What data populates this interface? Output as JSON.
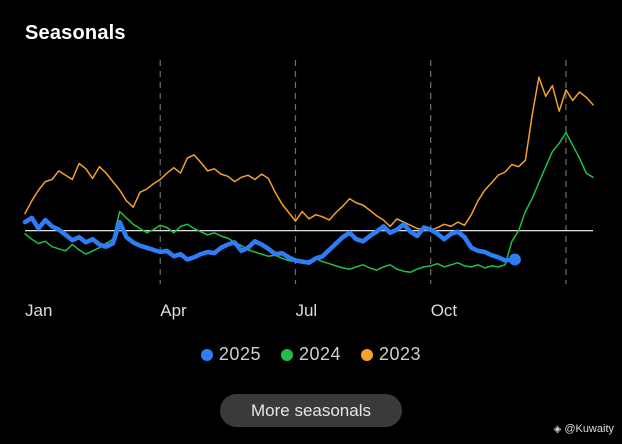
{
  "title": "Seasonals",
  "more_button": "More seasonals",
  "watermark": "@Kuwaity",
  "colors": {
    "2025": "#2f7df6",
    "2024": "#1fbf4a",
    "2023": "#f5a12a",
    "baseline": "#ffffff",
    "vline": "#6e6e6e"
  },
  "chart_data": {
    "type": "line",
    "x_unit": "month",
    "x_ticks": [
      {
        "label": "Jan",
        "x": 1
      },
      {
        "label": "Apr",
        "x": 4
      },
      {
        "label": "Jul",
        "x": 7
      },
      {
        "label": "Oct",
        "x": 10
      }
    ],
    "vlines": [
      4,
      7,
      10,
      13
    ],
    "xlim": [
      1,
      13.6
    ],
    "ylim": [
      -5,
      16
    ],
    "baseline": 0,
    "series": [
      {
        "name": "2025",
        "width": 4.5,
        "x": [
          1.0,
          1.15,
          1.3,
          1.45,
          1.6,
          1.75,
          1.9,
          2.05,
          2.2,
          2.35,
          2.5,
          2.65,
          2.8,
          2.95,
          3.1,
          3.25,
          3.4,
          3.55,
          3.7,
          3.85,
          4.0,
          4.15,
          4.3,
          4.45,
          4.6,
          4.75,
          4.9,
          5.05,
          5.2,
          5.35,
          5.5,
          5.65,
          5.8,
          5.95,
          6.1,
          6.25,
          6.4,
          6.55,
          6.7,
          6.85,
          7.0,
          7.15,
          7.3,
          7.45,
          7.6,
          7.75,
          7.9,
          8.05,
          8.2,
          8.35,
          8.5,
          8.65,
          8.8,
          8.95,
          9.1,
          9.25,
          9.4,
          9.55,
          9.7,
          9.85,
          10.0,
          10.15,
          10.3,
          10.45,
          10.6,
          10.75,
          10.9,
          11.05,
          11.2,
          11.35,
          11.5,
          11.65,
          11.8
        ],
        "y": [
          0.8,
          1.2,
          0.2,
          1.0,
          0.4,
          0.1,
          -0.4,
          -0.9,
          -0.6,
          -1.1,
          -0.8,
          -1.3,
          -1.5,
          -1.2,
          0.8,
          -0.6,
          -1.1,
          -1.4,
          -1.6,
          -1.8,
          -2.0,
          -1.9,
          -2.4,
          -2.2,
          -2.7,
          -2.5,
          -2.2,
          -2.0,
          -2.1,
          -1.6,
          -1.3,
          -1.1,
          -1.9,
          -1.6,
          -1.0,
          -1.3,
          -1.7,
          -2.2,
          -2.1,
          -2.5,
          -2.8,
          -2.9,
          -3.0,
          -2.6,
          -2.4,
          -1.8,
          -1.2,
          -0.6,
          -0.2,
          -0.8,
          -1.0,
          -0.5,
          -0.1,
          0.4,
          -0.2,
          0.1,
          0.6,
          -0.1,
          -0.5,
          0.3,
          0.1,
          -0.3,
          -0.8,
          -0.3,
          -0.1,
          -0.6,
          -1.6,
          -1.9,
          -2.0,
          -2.3,
          -2.5,
          -2.8,
          -2.7
        ]
      },
      {
        "name": "2024",
        "width": 1.5,
        "x": [
          1.0,
          1.15,
          1.3,
          1.45,
          1.6,
          1.75,
          1.9,
          2.05,
          2.2,
          2.35,
          2.5,
          2.65,
          2.8,
          2.95,
          3.1,
          3.25,
          3.4,
          3.55,
          3.7,
          3.85,
          4.0,
          4.15,
          4.3,
          4.45,
          4.6,
          4.75,
          4.9,
          5.05,
          5.2,
          5.35,
          5.5,
          5.65,
          5.8,
          5.95,
          6.1,
          6.25,
          6.4,
          6.55,
          6.7,
          6.85,
          7.0,
          7.15,
          7.3,
          7.45,
          7.6,
          7.75,
          7.9,
          8.05,
          8.2,
          8.35,
          8.5,
          8.65,
          8.8,
          8.95,
          9.1,
          9.25,
          9.4,
          9.55,
          9.7,
          9.85,
          10.0,
          10.15,
          10.3,
          10.45,
          10.6,
          10.75,
          10.9,
          11.05,
          11.2,
          11.35,
          11.5,
          11.65,
          11.8,
          11.95,
          12.1,
          12.25,
          12.4,
          12.55,
          12.7,
          12.85,
          13.0,
          13.15,
          13.3,
          13.45,
          13.6
        ],
        "y": [
          -0.3,
          -0.8,
          -1.2,
          -1.0,
          -1.5,
          -1.7,
          -1.9,
          -1.3,
          -1.8,
          -2.2,
          -1.9,
          -1.6,
          -1.2,
          -0.8,
          1.8,
          1.2,
          0.6,
          0.2,
          -0.2,
          0.1,
          0.5,
          0.3,
          -0.2,
          0.4,
          0.6,
          0.2,
          -0.1,
          -0.4,
          -0.2,
          -0.5,
          -0.7,
          -1.1,
          -1.4,
          -1.8,
          -2.0,
          -2.2,
          -2.4,
          -2.3,
          -2.6,
          -2.8,
          -2.9,
          -3.0,
          -2.8,
          -2.6,
          -2.9,
          -3.1,
          -3.3,
          -3.5,
          -3.6,
          -3.4,
          -3.2,
          -3.5,
          -3.7,
          -3.4,
          -3.2,
          -3.6,
          -3.8,
          -3.9,
          -3.6,
          -3.4,
          -3.3,
          -3.1,
          -3.4,
          -3.2,
          -3.0,
          -3.3,
          -3.4,
          -3.2,
          -3.5,
          -3.3,
          -3.4,
          -3.2,
          -1.0,
          0.0,
          1.8,
          3.0,
          4.5,
          6.0,
          7.4,
          8.2,
          9.2,
          8.0,
          6.8,
          5.4,
          5.0
        ]
      },
      {
        "name": "2023",
        "width": 1.5,
        "x": [
          1.0,
          1.15,
          1.3,
          1.45,
          1.6,
          1.75,
          1.9,
          2.05,
          2.2,
          2.35,
          2.5,
          2.65,
          2.8,
          2.95,
          3.1,
          3.25,
          3.4,
          3.55,
          3.7,
          3.85,
          4.0,
          4.15,
          4.3,
          4.45,
          4.6,
          4.75,
          4.9,
          5.05,
          5.2,
          5.35,
          5.5,
          5.65,
          5.8,
          5.95,
          6.1,
          6.25,
          6.4,
          6.55,
          6.7,
          6.85,
          7.0,
          7.15,
          7.3,
          7.45,
          7.6,
          7.75,
          7.9,
          8.05,
          8.2,
          8.35,
          8.5,
          8.65,
          8.8,
          8.95,
          9.1,
          9.25,
          9.4,
          9.55,
          9.7,
          9.85,
          10.0,
          10.15,
          10.3,
          10.45,
          10.6,
          10.75,
          10.9,
          11.05,
          11.2,
          11.35,
          11.5,
          11.65,
          11.8,
          11.95,
          12.1,
          12.25,
          12.4,
          12.55,
          12.7,
          12.85,
          13.0,
          13.15,
          13.3,
          13.45,
          13.6
        ],
        "y": [
          1.6,
          2.8,
          3.8,
          4.6,
          4.8,
          5.6,
          5.2,
          4.8,
          6.3,
          5.8,
          4.9,
          6.0,
          5.4,
          4.6,
          3.8,
          2.8,
          2.2,
          3.6,
          3.9,
          4.4,
          4.8,
          5.4,
          5.9,
          5.4,
          6.8,
          7.1,
          6.4,
          5.6,
          5.8,
          5.3,
          5.1,
          4.6,
          5.0,
          5.2,
          4.8,
          5.3,
          4.9,
          3.6,
          2.5,
          1.7,
          0.9,
          1.8,
          1.1,
          1.5,
          1.3,
          1.0,
          1.7,
          2.3,
          3.0,
          2.6,
          2.4,
          1.9,
          1.4,
          1.0,
          0.4,
          1.1,
          0.8,
          0.5,
          0.2,
          0.1,
          0.0,
          0.3,
          0.6,
          0.4,
          0.8,
          0.5,
          1.5,
          2.8,
          3.8,
          4.5,
          5.2,
          5.5,
          6.2,
          6.0,
          6.6,
          10.8,
          14.4,
          12.6,
          13.6,
          11.2,
          13.2,
          12.2,
          13.0,
          12.5,
          11.8
        ]
      }
    ]
  }
}
